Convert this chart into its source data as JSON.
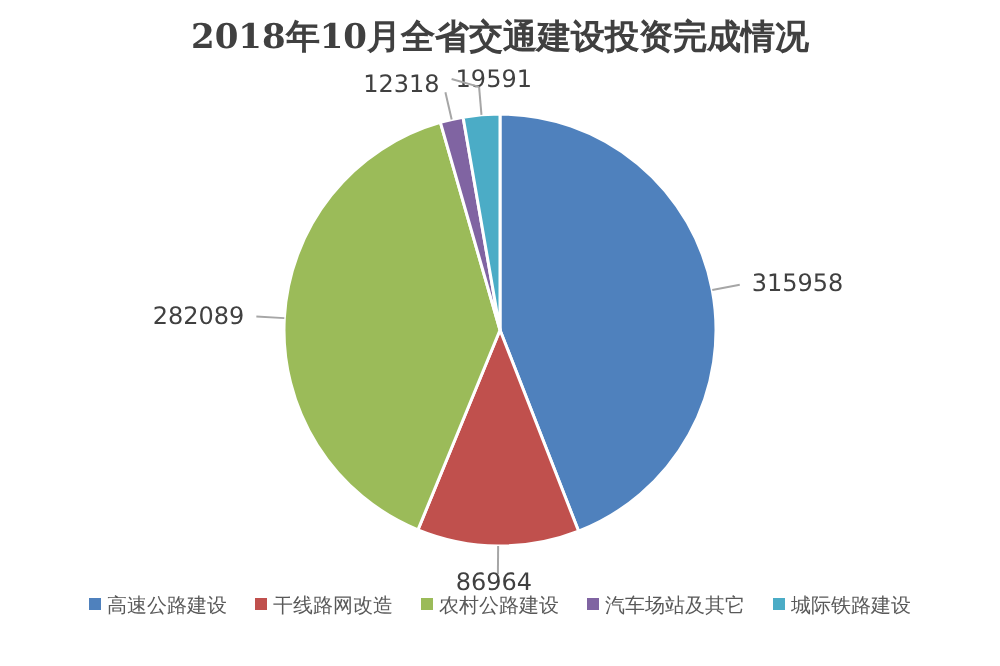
{
  "chart_data": {
    "type": "pie",
    "title": "2018年10月全省交通建设投资完成情况",
    "categories": [
      "高速公路建设",
      "干线路网改造",
      "农村公路建设",
      "汽车场站及其它",
      "城际铁路建设"
    ],
    "values": [
      315958,
      86964,
      282089,
      12318,
      19591
    ],
    "colors": [
      "#4f81bd",
      "#c0504d",
      "#9bbb59",
      "#8064a2",
      "#4bacc6"
    ],
    "data_labels": true,
    "legend": "bottom"
  }
}
